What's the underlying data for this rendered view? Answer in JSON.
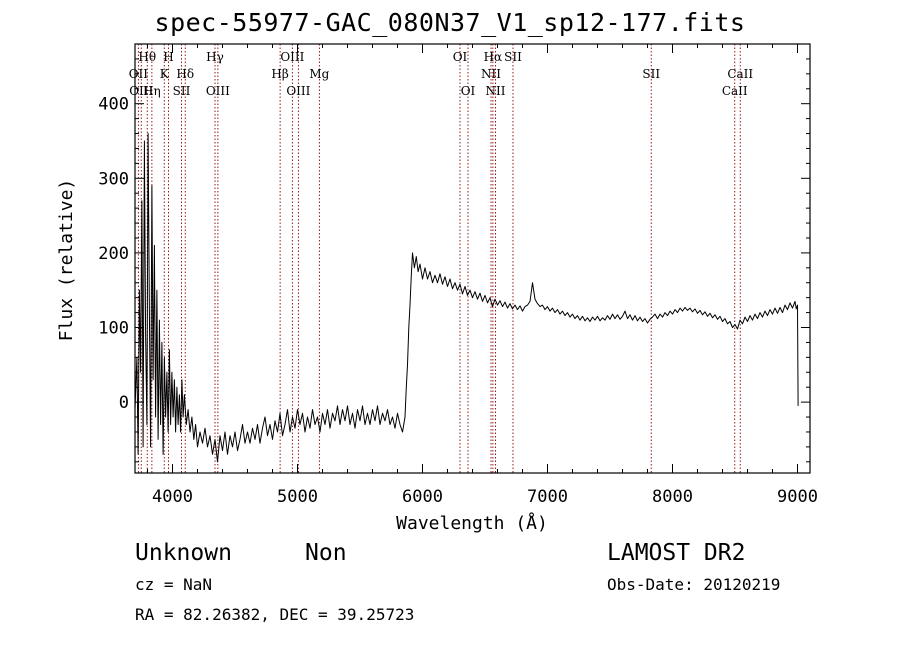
{
  "title": "spec-55977-GAC_080N37_V1_sp12-177.fits",
  "footer": {
    "object_class": "Unknown",
    "subclass": "Non",
    "survey": "LAMOST DR2",
    "redshift": "cz = NaN",
    "obs_date": "Obs-Date: 20120219",
    "coords": "RA =  82.26382, DEC =  39.25723"
  },
  "colors": {
    "spectrum": "#000000",
    "line_marker": "#8b0000",
    "axes": "#000000"
  },
  "chart_data": {
    "type": "line",
    "title": "spec-55977-GAC_080N37_V1_sp12-177.fits",
    "xlabel": "Wavelength (Å)",
    "ylabel": "Flux (relative)",
    "xlim": [
      3700,
      9100
    ],
    "ylim": [
      -95,
      480
    ],
    "xticks": [
      4000,
      5000,
      6000,
      7000,
      8000,
      9000
    ],
    "yticks": [
      0,
      100,
      200,
      300,
      400
    ],
    "grid": false,
    "series": [
      {
        "points": [
          [
            3700,
            -10
          ],
          [
            3715,
            60
          ],
          [
            3725,
            -70
          ],
          [
            3735,
            150
          ],
          [
            3745,
            40
          ],
          [
            3755,
            270
          ],
          [
            3765,
            -60
          ],
          [
            3775,
            350
          ],
          [
            3785,
            90
          ],
          [
            3795,
            -30
          ],
          [
            3805,
            360
          ],
          [
            3815,
            120
          ],
          [
            3825,
            -60
          ],
          [
            3835,
            290
          ],
          [
            3845,
            30
          ],
          [
            3855,
            210
          ],
          [
            3865,
            -20
          ],
          [
            3875,
            150
          ],
          [
            3885,
            -50
          ],
          [
            3895,
            110
          ],
          [
            3905,
            -30
          ],
          [
            3915,
            80
          ],
          [
            3925,
            -70
          ],
          [
            3935,
            60
          ],
          [
            3945,
            -20
          ],
          [
            3955,
            40
          ],
          [
            3965,
            -40
          ],
          [
            3975,
            70
          ],
          [
            3985,
            -30
          ],
          [
            3995,
            40
          ],
          [
            4005,
            -20
          ],
          [
            4015,
            30
          ],
          [
            4025,
            -40
          ],
          [
            4035,
            20
          ],
          [
            4045,
            -30
          ],
          [
            4055,
            10
          ],
          [
            4065,
            -40
          ],
          [
            4075,
            30
          ],
          [
            4085,
            -20
          ],
          [
            4095,
            10
          ],
          [
            4110,
            -30
          ],
          [
            4125,
            -10
          ],
          [
            4140,
            -40
          ],
          [
            4155,
            -20
          ],
          [
            4170,
            -50
          ],
          [
            4185,
            -30
          ],
          [
            4200,
            -60
          ],
          [
            4220,
            -40
          ],
          [
            4240,
            -55
          ],
          [
            4260,
            -35
          ],
          [
            4280,
            -60
          ],
          [
            4300,
            -45
          ],
          [
            4320,
            -70
          ],
          [
            4340,
            -50
          ],
          [
            4360,
            -80
          ],
          [
            4380,
            -45
          ],
          [
            4400,
            -65
          ],
          [
            4420,
            -40
          ],
          [
            4440,
            -70
          ],
          [
            4460,
            -45
          ],
          [
            4480,
            -60
          ],
          [
            4500,
            -40
          ],
          [
            4520,
            -65
          ],
          [
            4540,
            -50
          ],
          [
            4560,
            -30
          ],
          [
            4580,
            -55
          ],
          [
            4600,
            -40
          ],
          [
            4620,
            -55
          ],
          [
            4640,
            -35
          ],
          [
            4660,
            -50
          ],
          [
            4680,
            -30
          ],
          [
            4700,
            -55
          ],
          [
            4720,
            -35
          ],
          [
            4740,
            -20
          ],
          [
            4760,
            -45
          ],
          [
            4780,
            -30
          ],
          [
            4800,
            -50
          ],
          [
            4820,
            -25
          ],
          [
            4840,
            -40
          ],
          [
            4860,
            -15
          ],
          [
            4880,
            -45
          ],
          [
            4900,
            -30
          ],
          [
            4920,
            -10
          ],
          [
            4940,
            -40
          ],
          [
            4960,
            -20
          ],
          [
            4980,
            -35
          ],
          [
            5000,
            -10
          ],
          [
            5020,
            -30
          ],
          [
            5040,
            -15
          ],
          [
            5060,
            -40
          ],
          [
            5080,
            -20
          ],
          [
            5100,
            -35
          ],
          [
            5120,
            -10
          ],
          [
            5140,
            -30
          ],
          [
            5160,
            -20
          ],
          [
            5180,
            -40
          ],
          [
            5200,
            -15
          ],
          [
            5220,
            -30
          ],
          [
            5240,
            -10
          ],
          [
            5260,
            -35
          ],
          [
            5280,
            -15
          ],
          [
            5300,
            -25
          ],
          [
            5320,
            -5
          ],
          [
            5340,
            -30
          ],
          [
            5360,
            -10
          ],
          [
            5380,
            -25
          ],
          [
            5400,
            -5
          ],
          [
            5420,
            -30
          ],
          [
            5440,
            -15
          ],
          [
            5460,
            -35
          ],
          [
            5480,
            -10
          ],
          [
            5500,
            -25
          ],
          [
            5520,
            -5
          ],
          [
            5540,
            -30
          ],
          [
            5560,
            -15
          ],
          [
            5580,
            -30
          ],
          [
            5600,
            -10
          ],
          [
            5620,
            -25
          ],
          [
            5640,
            -5
          ],
          [
            5660,
            -30
          ],
          [
            5680,
            -15
          ],
          [
            5700,
            -25
          ],
          [
            5720,
            -10
          ],
          [
            5740,
            -30
          ],
          [
            5760,
            -20
          ],
          [
            5780,
            -35
          ],
          [
            5800,
            -15
          ],
          [
            5820,
            -30
          ],
          [
            5840,
            -40
          ],
          [
            5860,
            -20
          ],
          [
            5870,
            20
          ],
          [
            5880,
            50
          ],
          [
            5890,
            100
          ],
          [
            5900,
            130
          ],
          [
            5910,
            170
          ],
          [
            5920,
            200
          ],
          [
            5935,
            180
          ],
          [
            5950,
            195
          ],
          [
            5965,
            175
          ],
          [
            5980,
            185
          ],
          [
            6000,
            165
          ],
          [
            6020,
            180
          ],
          [
            6040,
            165
          ],
          [
            6060,
            175
          ],
          [
            6080,
            160
          ],
          [
            6100,
            170
          ],
          [
            6120,
            160
          ],
          [
            6140,
            172
          ],
          [
            6160,
            158
          ],
          [
            6180,
            168
          ],
          [
            6200,
            155
          ],
          [
            6220,
            165
          ],
          [
            6240,
            152
          ],
          [
            6260,
            160
          ],
          [
            6280,
            150
          ],
          [
            6300,
            158
          ],
          [
            6320,
            145
          ],
          [
            6340,
            155
          ],
          [
            6360,
            143
          ],
          [
            6380,
            150
          ],
          [
            6400,
            140
          ],
          [
            6420,
            148
          ],
          [
            6440,
            138
          ],
          [
            6460,
            146
          ],
          [
            6480,
            135
          ],
          [
            6500,
            143
          ],
          [
            6520,
            133
          ],
          [
            6540,
            140
          ],
          [
            6560,
            128
          ],
          [
            6580,
            138
          ],
          [
            6600,
            130
          ],
          [
            6620,
            136
          ],
          [
            6640,
            128
          ],
          [
            6660,
            134
          ],
          [
            6680,
            126
          ],
          [
            6700,
            132
          ],
          [
            6720,
            125
          ],
          [
            6740,
            130
          ],
          [
            6760,
            124
          ],
          [
            6780,
            129
          ],
          [
            6800,
            122
          ],
          [
            6820,
            128
          ],
          [
            6840,
            130
          ],
          [
            6860,
            135
          ],
          [
            6880,
            160
          ],
          [
            6900,
            138
          ],
          [
            6920,
            132
          ],
          [
            6940,
            128
          ],
          [
            6960,
            130
          ],
          [
            6980,
            124
          ],
          [
            7000,
            128
          ],
          [
            7020,
            122
          ],
          [
            7040,
            126
          ],
          [
            7060,
            120
          ],
          [
            7080,
            124
          ],
          [
            7100,
            118
          ],
          [
            7120,
            122
          ],
          [
            7140,
            116
          ],
          [
            7160,
            120
          ],
          [
            7180,
            114
          ],
          [
            7200,
            118
          ],
          [
            7220,
            112
          ],
          [
            7240,
            116
          ],
          [
            7260,
            110
          ],
          [
            7280,
            115
          ],
          [
            7300,
            109
          ],
          [
            7320,
            113
          ],
          [
            7340,
            108
          ],
          [
            7360,
            114
          ],
          [
            7380,
            110
          ],
          [
            7400,
            115
          ],
          [
            7420,
            109
          ],
          [
            7440,
            113
          ],
          [
            7460,
            110
          ],
          [
            7480,
            116
          ],
          [
            7500,
            111
          ],
          [
            7520,
            118
          ],
          [
            7540,
            112
          ],
          [
            7560,
            117
          ],
          [
            7580,
            111
          ],
          [
            7600,
            115
          ],
          [
            7620,
            122
          ],
          [
            7640,
            112
          ],
          [
            7660,
            117
          ],
          [
            7680,
            110
          ],
          [
            7700,
            116
          ],
          [
            7720,
            109
          ],
          [
            7740,
            114
          ],
          [
            7760,
            108
          ],
          [
            7780,
            112
          ],
          [
            7800,
            106
          ],
          [
            7820,
            111
          ],
          [
            7840,
            114
          ],
          [
            7860,
            118
          ],
          [
            7880,
            112
          ],
          [
            7900,
            118
          ],
          [
            7920,
            114
          ],
          [
            7940,
            120
          ],
          [
            7960,
            116
          ],
          [
            7980,
            122
          ],
          [
            8000,
            118
          ],
          [
            8020,
            124
          ],
          [
            8040,
            120
          ],
          [
            8060,
            126
          ],
          [
            8080,
            122
          ],
          [
            8100,
            127
          ],
          [
            8120,
            123
          ],
          [
            8140,
            126
          ],
          [
            8160,
            121
          ],
          [
            8180,
            125
          ],
          [
            8200,
            119
          ],
          [
            8220,
            123
          ],
          [
            8240,
            117
          ],
          [
            8260,
            121
          ],
          [
            8280,
            115
          ],
          [
            8300,
            119
          ],
          [
            8320,
            113
          ],
          [
            8340,
            117
          ],
          [
            8360,
            111
          ],
          [
            8380,
            115
          ],
          [
            8400,
            108
          ],
          [
            8420,
            112
          ],
          [
            8440,
            105
          ],
          [
            8460,
            108
          ],
          [
            8480,
            100
          ],
          [
            8500,
            104
          ],
          [
            8520,
            98
          ],
          [
            8540,
            110
          ],
          [
            8560,
            105
          ],
          [
            8580,
            114
          ],
          [
            8600,
            108
          ],
          [
            8620,
            116
          ],
          [
            8640,
            110
          ],
          [
            8660,
            118
          ],
          [
            8680,
            112
          ],
          [
            8700,
            120
          ],
          [
            8720,
            114
          ],
          [
            8740,
            122
          ],
          [
            8760,
            116
          ],
          [
            8780,
            124
          ],
          [
            8800,
            118
          ],
          [
            8820,
            126
          ],
          [
            8840,
            119
          ],
          [
            8860,
            127
          ],
          [
            8880,
            120
          ],
          [
            8900,
            130
          ],
          [
            8920,
            124
          ],
          [
            8940,
            133
          ],
          [
            8960,
            126
          ],
          [
            8980,
            135
          ],
          [
            8990,
            125
          ],
          [
            9000,
            130
          ],
          [
            9005,
            -5
          ]
        ]
      }
    ],
    "line_markers": [
      {
        "label": "Hθ",
        "x": 3798,
        "row": 0
      },
      {
        "label": "OII",
        "x": 3727,
        "row": 1
      },
      {
        "label": "OIII",
        "x": 3750,
        "row": 2
      },
      {
        "label": "Hη",
        "x": 3835,
        "row": 2
      },
      {
        "label": "H",
        "x": 3968,
        "row": 0
      },
      {
        "label": "K",
        "x": 3934,
        "row": 1
      },
      {
        "label": "Hδ",
        "x": 4102,
        "row": 1
      },
      {
        "label": "SII",
        "x": 4072,
        "row": 2
      },
      {
        "label": "Hγ",
        "x": 4340,
        "row": 0
      },
      {
        "label": "OIII",
        "x": 4363,
        "row": 2
      },
      {
        "label": "OIII",
        "x": 4959,
        "row": 0
      },
      {
        "label": "Hβ",
        "x": 4861,
        "row": 1
      },
      {
        "label": "OIII",
        "x": 5007,
        "row": 2
      },
      {
        "label": "Mg",
        "x": 5175,
        "row": 1
      },
      {
        "label": "OI",
        "x": 6300,
        "row": 0
      },
      {
        "label": "OI",
        "x": 6364,
        "row": 2
      },
      {
        "label": "Hα",
        "x": 6563,
        "row": 0
      },
      {
        "label": "SII",
        "x": 6724,
        "row": 0
      },
      {
        "label": "NII",
        "x": 6548,
        "row": 1
      },
      {
        "label": "NII",
        "x": 6584,
        "row": 2
      },
      {
        "label": "SII",
        "x": 7830,
        "row": 1
      },
      {
        "label": "CaII",
        "x": 8542,
        "row": 1
      },
      {
        "label": "CaII",
        "x": 8498,
        "row": 2
      }
    ]
  }
}
